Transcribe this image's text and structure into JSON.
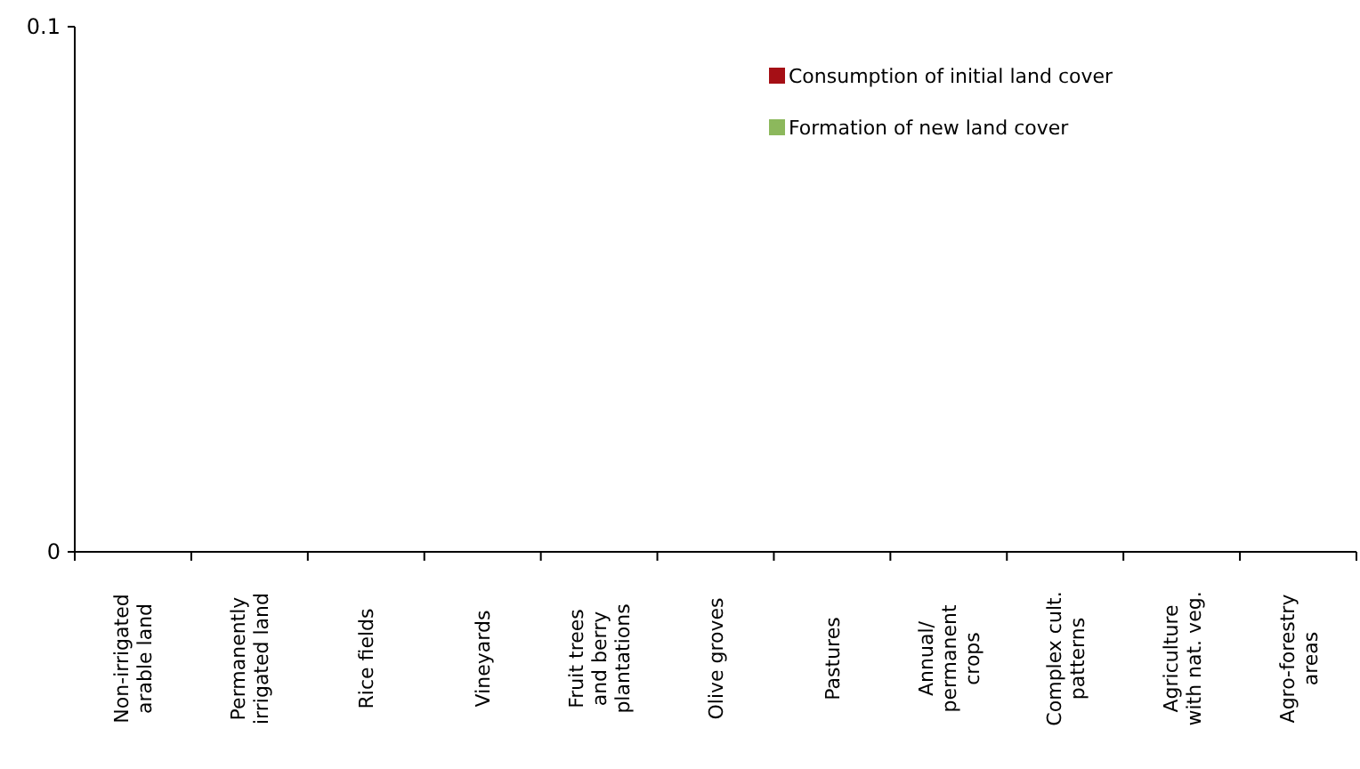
{
  "chart_data": {
    "type": "bar",
    "categories": [
      "Non-irrigated\narable land",
      "Permanently\nirrigated land",
      "Rice fields",
      "Vineyards",
      "Fruit trees\nand berry\nplantations",
      "Olive groves",
      "Pastures",
      "Annual/\npermanent\ncrops",
      "Complex cult.\npatterns",
      "Agriculture\nwith nat. veg.",
      "Agro-forestry\nareas"
    ],
    "series": [
      {
        "name": "Consumption of initial land cover",
        "color": "#a50f15",
        "values": [
          0,
          0,
          0,
          0,
          0,
          0,
          0,
          0,
          0,
          0,
          0
        ]
      },
      {
        "name": "Formation of new land cover",
        "color": "#8cb85c",
        "values": [
          0,
          0,
          0,
          0,
          0,
          0,
          0,
          0,
          0,
          0,
          0
        ]
      }
    ],
    "ylim": [
      0,
      0.1
    ],
    "yticks": [
      0,
      0.1
    ],
    "grid": false,
    "legend": "top right"
  }
}
